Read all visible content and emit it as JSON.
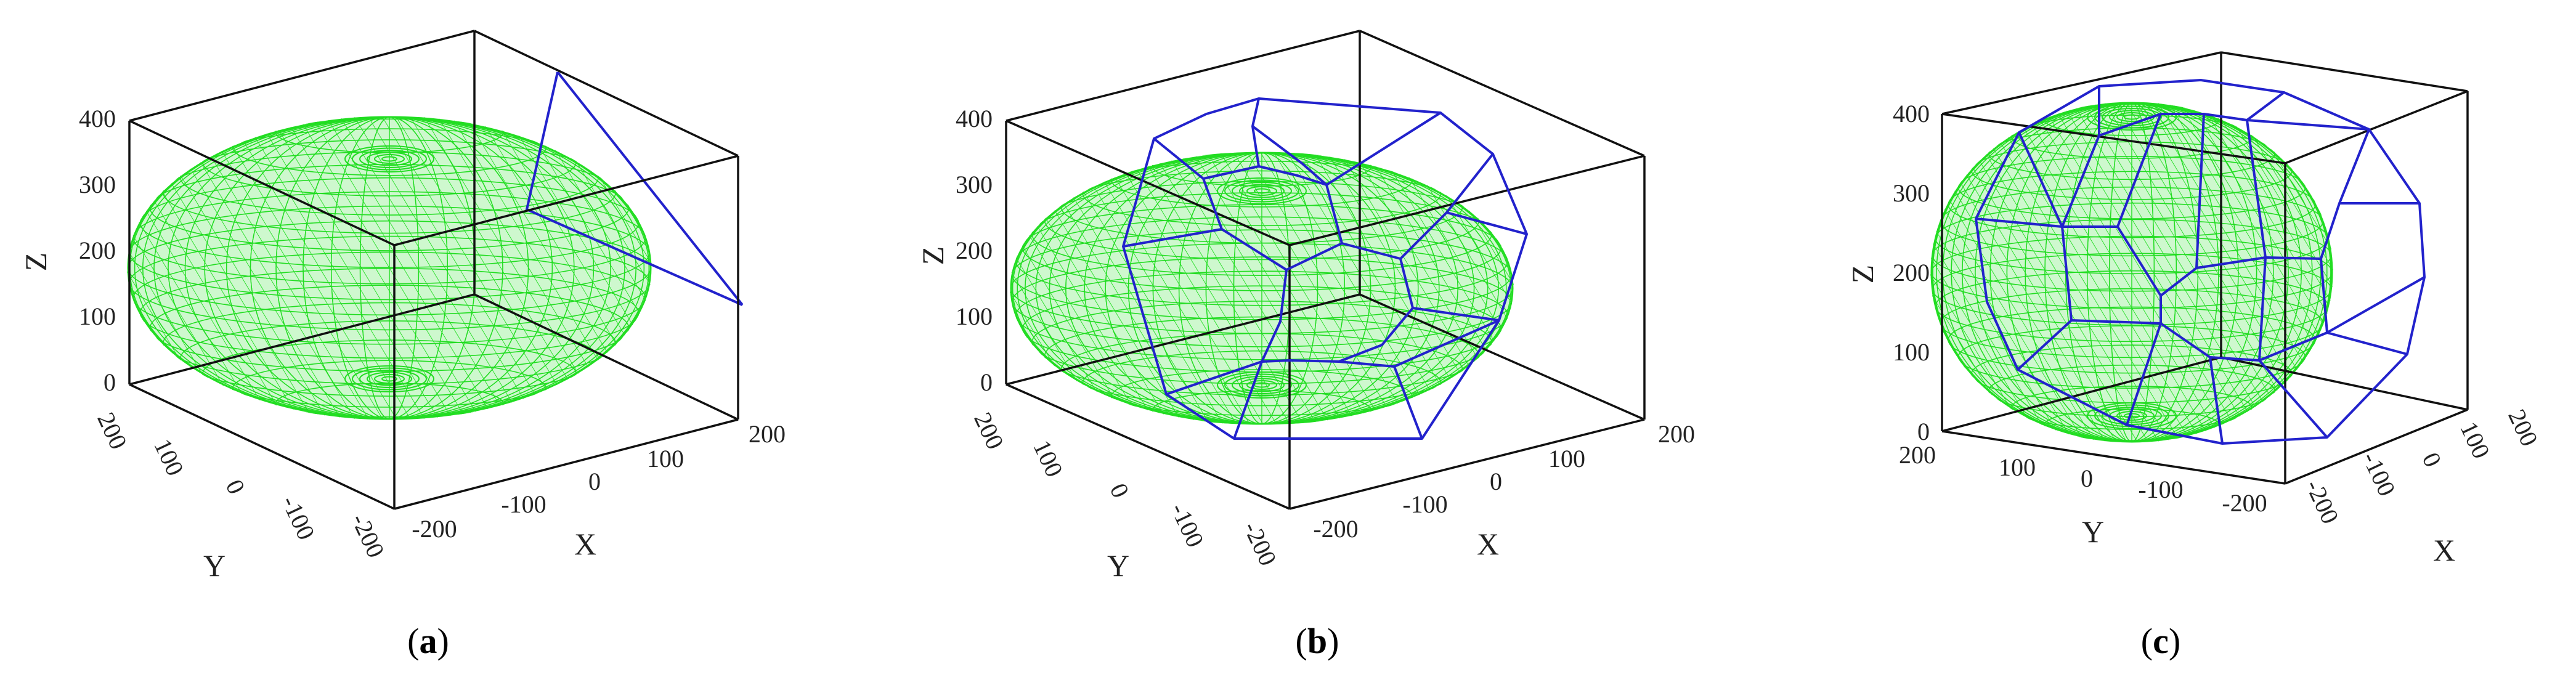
{
  "colors": {
    "mesh": "#22dd22",
    "polyhedron": "#2222cc",
    "box": "#111111",
    "background": "#ffffff"
  },
  "axes": {
    "x_title": "X",
    "y_title": "Y",
    "z_title": "Z",
    "x_ticks": [
      "-200",
      "-100",
      "0",
      "100",
      "200"
    ],
    "y_ticks": [
      "-200",
      "-100",
      "0",
      "100",
      "200"
    ],
    "z_ticks": [
      "0",
      "100",
      "200",
      "300",
      "400"
    ]
  },
  "panels": [
    {
      "id": "a",
      "caption_open": "(",
      "caption_letter": "a",
      "caption_close": ")"
    },
    {
      "id": "b",
      "caption_open": "(",
      "caption_letter": "b",
      "caption_close": ")"
    },
    {
      "id": "c",
      "caption_open": "(",
      "caption_letter": "c",
      "caption_close": ")"
    }
  ]
}
